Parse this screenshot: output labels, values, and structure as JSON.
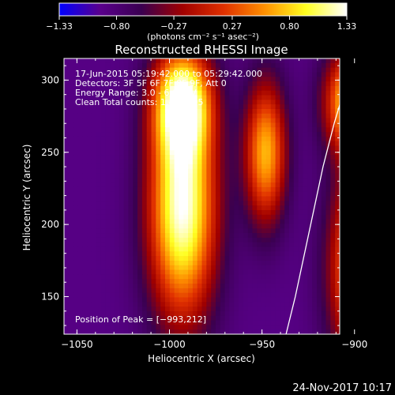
{
  "chart_data": {
    "type": "heatmap",
    "title": "Reconstructed RHESSI Image",
    "xlabel": "Heliocentric X (arcsec)",
    "ylabel": "Heliocentric Y (arcsec)",
    "xlim": [
      -1057,
      -908
    ],
    "ylim": [
      124,
      315
    ],
    "x_ticks": [
      -1050,
      -1000,
      -950,
      -900
    ],
    "x_tick_labels": [
      "−1050",
      "−1000",
      "−950",
      "−900"
    ],
    "y_ticks": [
      150,
      200,
      250,
      300
    ],
    "y_tick_labels": [
      "150",
      "200",
      "250",
      "300"
    ],
    "grid": false,
    "colorbar": {
      "position": "top",
      "range": [
        -1.33,
        1.33
      ],
      "ticks": [
        -1.33,
        -0.8,
        -0.27,
        0.27,
        0.8,
        1.33
      ],
      "tick_labels": [
        "−1.33",
        "−0.80",
        "−0.27",
        "0.27",
        "0.80",
        "1.33"
      ],
      "units_label": "(photons cm⁻² s⁻¹ asec⁻²)",
      "colormap": [
        "#0000ff",
        "#5a008c",
        "#3a0050",
        "#a00000",
        "#e03000",
        "#ff9000",
        "#ffff20",
        "#ffffff"
      ]
    },
    "annotations": [
      "17-Jun-2015 05:19:42.000 to 05:29:42.000",
      "Detectors: 3F 5F 6F 7F 8F 9F, Att 0",
      "Energy Range: 3.0 - 6.0 keV",
      "Clean     Total counts: 1.43E+05"
    ],
    "peak_label": "Position of Peak = [−993,212]",
    "peak": [
      -993,
      212
    ],
    "limb_curve": {
      "color": "#ffffff",
      "points": [
        [
          -937,
          124
        ],
        [
          -932,
          150
        ],
        [
          -927,
          180
        ],
        [
          -922,
          210
        ],
        [
          -917,
          240
        ],
        [
          -911,
          270
        ],
        [
          -904,
          300
        ],
        [
          -900,
          315
        ]
      ]
    },
    "sources": [
      {
        "x": -993,
        "y": 212,
        "amp": 1.33,
        "sx": 13,
        "sy": 55
      },
      {
        "x": -993,
        "y": 285,
        "amp": 0.95,
        "sx": 11,
        "sy": 25
      },
      {
        "x": -893,
        "y": 170,
        "amp": 1.25,
        "sx": 13,
        "sy": 48
      },
      {
        "x": -900,
        "y": 285,
        "amp": 1.05,
        "sx": 11,
        "sy": 25
      },
      {
        "x": -948,
        "y": 250,
        "amp": 0.7,
        "sx": 8,
        "sy": 35
      }
    ]
  },
  "footer": {
    "timestamp": "24-Nov-2017 10:17"
  }
}
